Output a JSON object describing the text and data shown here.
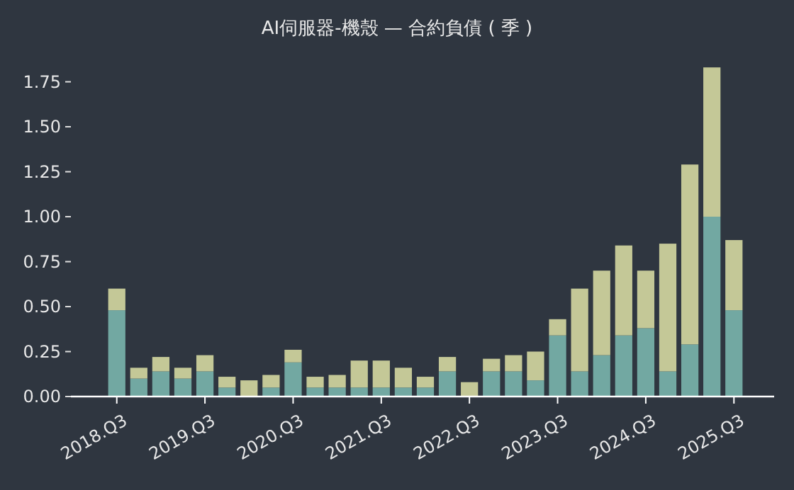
{
  "chart_data": {
    "type": "bar",
    "title": "AI伺服器-機殼 — 合約負債 ( 季 )",
    "stacked": true,
    "categories": [
      "2018.Q3",
      null,
      null,
      null,
      "2019.Q3",
      null,
      null,
      null,
      "2020.Q3",
      null,
      null,
      null,
      "2021.Q3",
      null,
      null,
      null,
      "2022.Q3",
      null,
      null,
      null,
      "2023.Q3",
      null,
      null,
      null,
      "2024.Q3",
      null,
      null,
      null,
      "2025.Q3"
    ],
    "series": [
      {
        "color": "#72a8a2",
        "values": [
          0.48,
          0.1,
          0.14,
          0.1,
          0.14,
          0.05,
          0,
          0.05,
          0.19,
          0.05,
          0.05,
          0.05,
          0.05,
          0.05,
          0.05,
          0.14,
          0,
          0.14,
          0.14,
          0.09,
          0.34,
          0.14,
          0.23,
          0.34,
          0.38,
          0.14,
          0.29,
          1.0,
          0.48
        ]
      },
      {
        "color": "#c4c897",
        "values": [
          0.12,
          0.06,
          0.08,
          0.06,
          0.09,
          0.06,
          0.09,
          0.07,
          0.07,
          0.06,
          0.07,
          0.15,
          0.15,
          0.11,
          0.06,
          0.08,
          0.08,
          0.07,
          0.09,
          0.16,
          0.09,
          0.46,
          0.47,
          0.5,
          0.32,
          0.71,
          1.0,
          0.83,
          0.39
        ]
      }
    ],
    "ylim": [
      0,
      1.83
    ],
    "yticks": [
      {
        "value": 0,
        "label": "0.00"
      },
      {
        "value": 0.25,
        "label": "0.25"
      },
      {
        "value": 0.5,
        "label": "0.50"
      },
      {
        "value": 0.75,
        "label": "0.75"
      },
      {
        "value": 1,
        "label": "1.00"
      },
      {
        "value": 1.25,
        "label": "1.25"
      },
      {
        "value": 1.5,
        "label": "1.50"
      },
      {
        "value": 1.75,
        "label": "1.75"
      }
    ],
    "grid": false
  }
}
